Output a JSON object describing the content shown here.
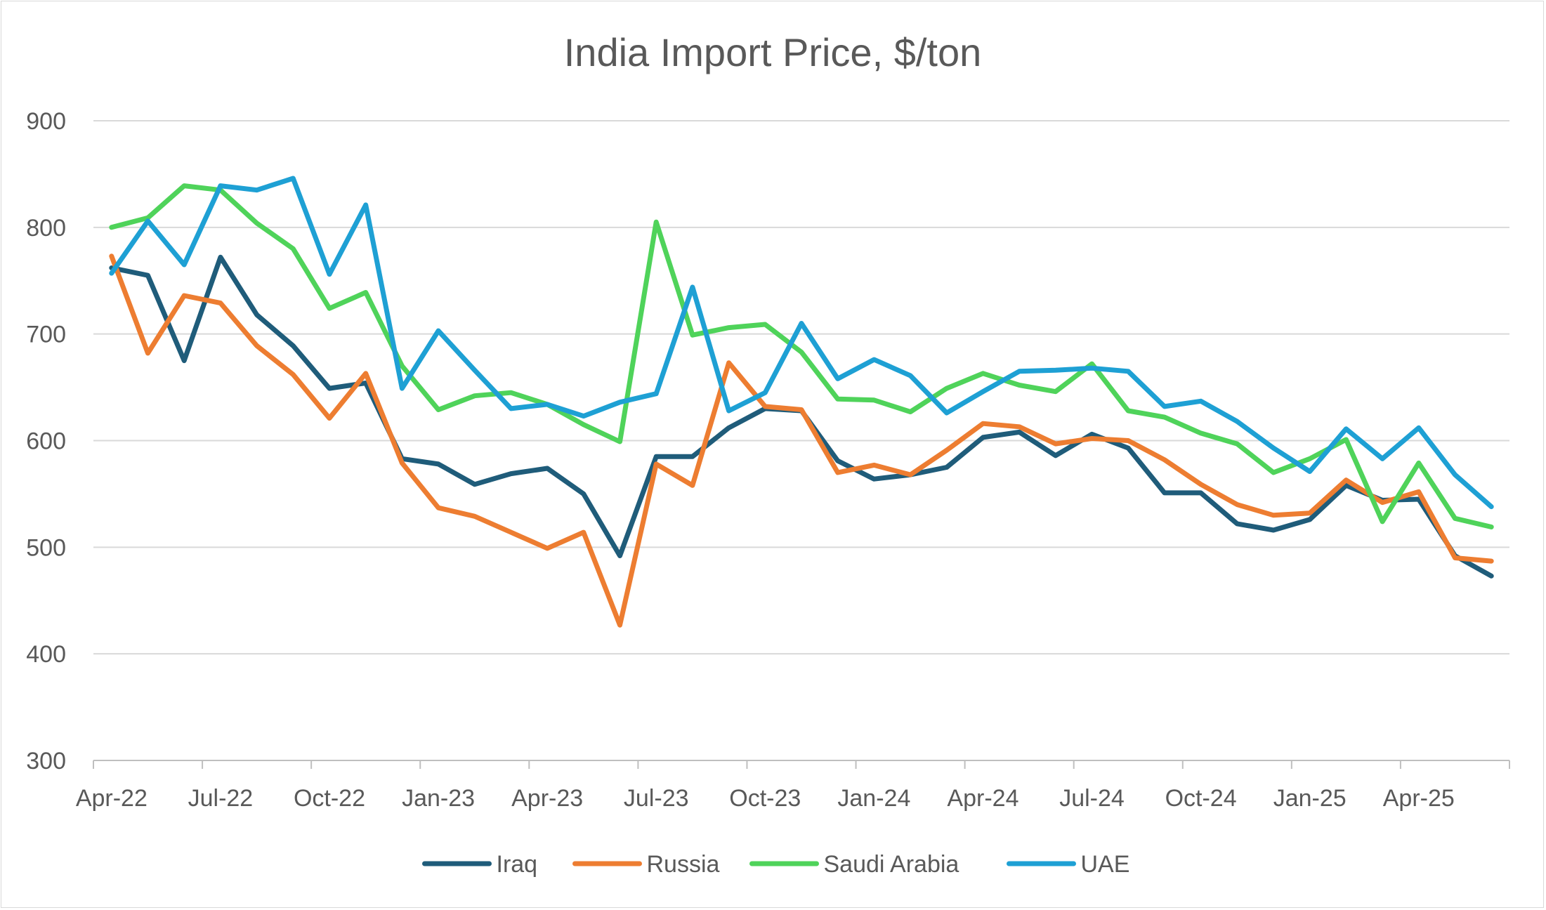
{
  "chart_data": {
    "type": "line",
    "title": "India Import Price, $/ton",
    "xlabel": "",
    "ylabel": "",
    "ylim": [
      300,
      900
    ],
    "yticks": [
      300,
      400,
      500,
      600,
      700,
      800,
      900
    ],
    "grid": true,
    "legend_position": "bottom",
    "x": [
      "Apr-22",
      "May-22",
      "Jun-22",
      "Jul-22",
      "Aug-22",
      "Sep-22",
      "Oct-22",
      "Nov-22",
      "Dec-22",
      "Jan-23",
      "Feb-23",
      "Mar-23",
      "Apr-23",
      "May-23",
      "Jun-23",
      "Jul-23",
      "Aug-23",
      "Sep-23",
      "Oct-23",
      "Nov-23",
      "Dec-23",
      "Jan-24",
      "Feb-24",
      "Mar-24",
      "Apr-24",
      "May-24",
      "Jun-24",
      "Jul-24",
      "Aug-24",
      "Sep-24",
      "Oct-24",
      "Nov-24",
      "Dec-24",
      "Jan-25",
      "Feb-25",
      "Mar-25",
      "Apr-25",
      "May-25",
      "Jun-25"
    ],
    "x_tick_labels": [
      "Apr-22",
      "Jul-22",
      "Oct-22",
      "Jan-23",
      "Apr-23",
      "Jul-23",
      "Oct-23",
      "Jan-24",
      "Apr-24",
      "Jul-24",
      "Oct-24",
      "Jan-25",
      "Apr-25"
    ],
    "series": [
      {
        "name": "Iraq",
        "color": "#1f5c7a",
        "values": [
          762,
          755,
          675,
          772,
          718,
          689,
          649,
          654,
          583,
          578,
          559,
          569,
          574,
          550,
          492,
          585,
          585,
          612,
          630,
          628,
          581,
          564,
          568,
          575,
          603,
          608,
          586,
          606,
          593,
          551,
          551,
          522,
          516,
          526,
          558,
          544,
          545,
          492,
          473
        ]
      },
      {
        "name": "Russia",
        "color": "#ed7d31",
        "values": [
          773,
          682,
          736,
          729,
          689,
          662,
          621,
          663,
          579,
          537,
          529,
          514,
          499,
          514,
          427,
          578,
          558,
          673,
          632,
          629,
          570,
          577,
          568,
          591,
          616,
          613,
          597,
          602,
          600,
          582,
          559,
          540,
          530,
          532,
          563,
          542,
          552,
          490,
          487
        ]
      },
      {
        "name": "Saudi Arabia",
        "color": "#4fd35a",
        "values": [
          800,
          809,
          839,
          835,
          804,
          780,
          724,
          739,
          670,
          629,
          642,
          645,
          634,
          615,
          599,
          805,
          699,
          706,
          709,
          683,
          639,
          638,
          627,
          649,
          663,
          652,
          646,
          672,
          628,
          622,
          607,
          597,
          570,
          583,
          601,
          524,
          579,
          527,
          519
        ]
      },
      {
        "name": "UAE",
        "color": "#1ea0d4",
        "values": [
          757,
          806,
          765,
          839,
          835,
          846,
          756,
          821,
          649,
          703,
          666,
          630,
          634,
          623,
          636,
          644,
          744,
          628,
          645,
          710,
          658,
          676,
          661,
          626,
          646,
          665,
          666,
          668,
          665,
          632,
          637,
          618,
          593,
          571,
          611,
          583,
          612,
          568,
          538
        ]
      }
    ]
  }
}
